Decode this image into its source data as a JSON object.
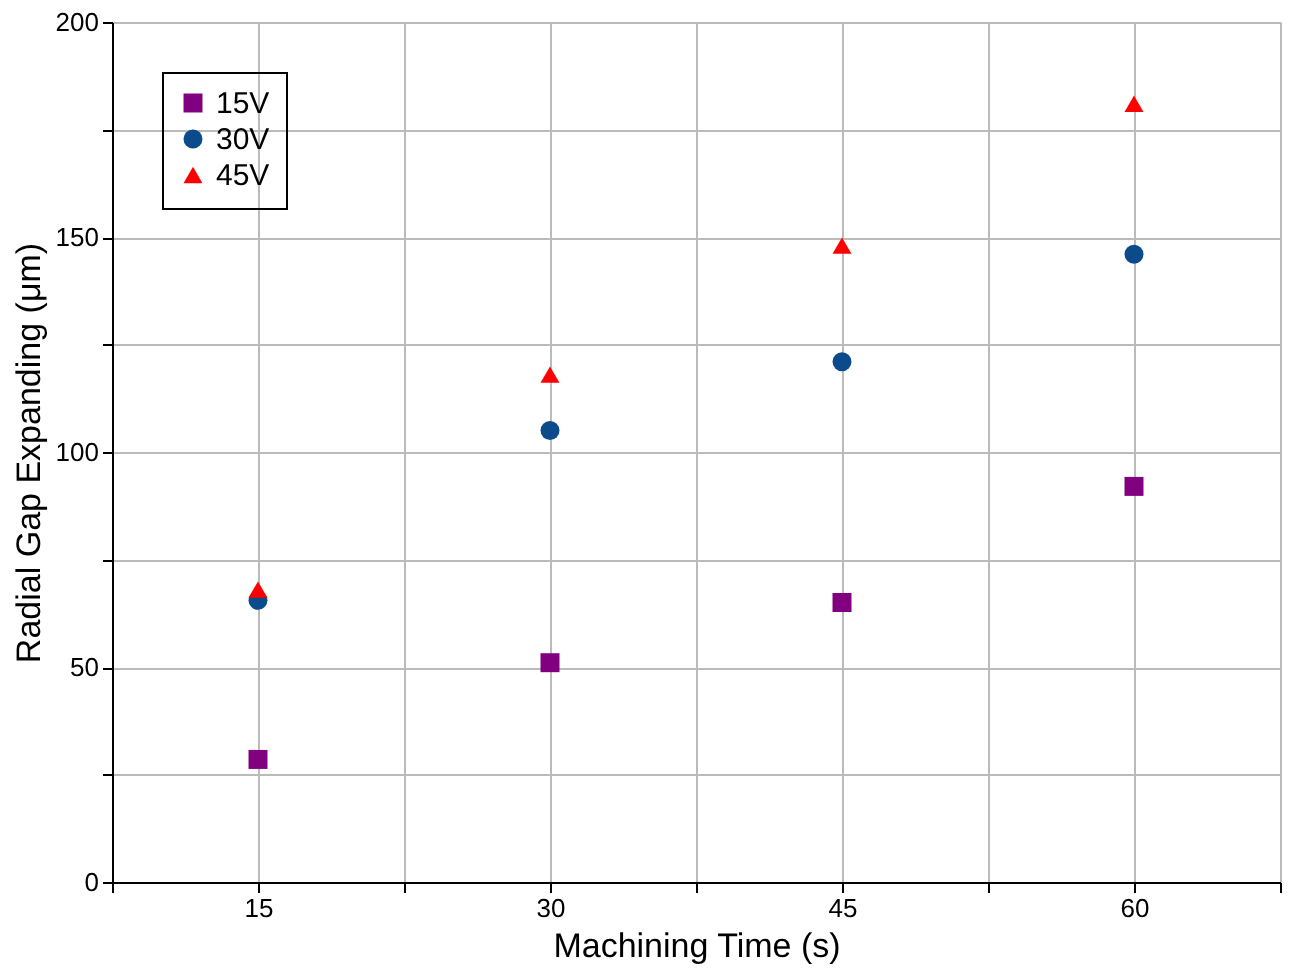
{
  "chart_data": {
    "type": "scatter",
    "xlabel": "Machining Time (s)",
    "ylabel": "Radial Gap Expanding (μm)",
    "x": [
      15,
      30,
      45,
      60
    ],
    "series": [
      {
        "name": "15V",
        "color": "#800080",
        "marker": "square",
        "values": [
          28.5,
          51,
          65,
          92
        ]
      },
      {
        "name": "30V",
        "color": "#0b4a8b",
        "marker": "circle",
        "values": [
          65.5,
          105,
          121,
          146
        ]
      },
      {
        "name": "45V",
        "color": "#ff0000",
        "marker": "triangle",
        "values": [
          68,
          118,
          148,
          181
        ]
      }
    ],
    "xlim": [
      7.5,
      67.5
    ],
    "xticks": [
      {
        "value": 7.5,
        "label": null
      },
      15,
      {
        "value": 22.5,
        "label": null
      },
      30,
      {
        "value": 37.5,
        "label": null
      },
      45,
      {
        "value": 52.5,
        "label": null
      },
      60,
      {
        "value": 67.5,
        "label": null
      }
    ],
    "ylim": [
      0,
      200
    ],
    "yticks": [
      0,
      {
        "value": 25,
        "label": null
      },
      50,
      {
        "value": 75,
        "label": null
      },
      100,
      {
        "value": 125,
        "label": null
      },
      150,
      {
        "value": 175,
        "label": null
      },
      200
    ],
    "grid": true,
    "legend": "top left"
  }
}
